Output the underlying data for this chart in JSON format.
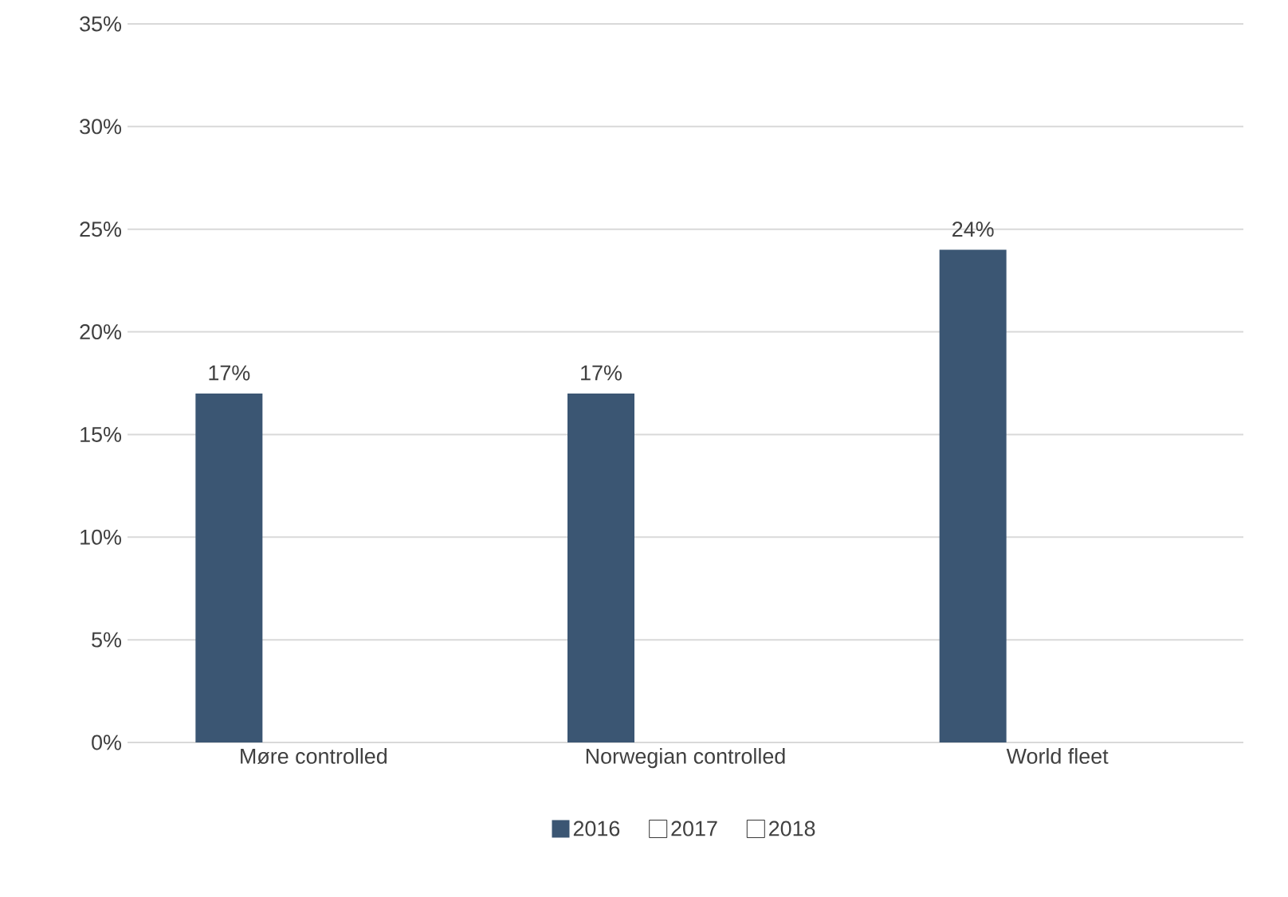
{
  "chart_data": {
    "type": "bar",
    "categories": [
      "Møre controlled",
      "Norwegian  controlled",
      "World fleet"
    ],
    "series": [
      {
        "name": "2016",
        "color": "#3b5673",
        "values": [
          17,
          17,
          24
        ],
        "value_labels": [
          "17%",
          "17%",
          "24%"
        ]
      },
      {
        "name": "2017",
        "values": [
          null,
          null,
          null
        ]
      },
      {
        "name": "2018",
        "values": [
          null,
          null,
          null
        ]
      }
    ],
    "ylim": [
      0,
      35
    ],
    "yticks": [
      {
        "value": 0,
        "label": "0%"
      },
      {
        "value": 5,
        "label": "5%"
      },
      {
        "value": 10,
        "label": "10%"
      },
      {
        "value": 15,
        "label": "15%"
      },
      {
        "value": 20,
        "label": "20%"
      },
      {
        "value": 25,
        "label": "25%"
      },
      {
        "value": 30,
        "label": "30%"
      },
      {
        "value": 35,
        "label": "35%"
      }
    ],
    "grid": "y",
    "legend": "bottom"
  }
}
